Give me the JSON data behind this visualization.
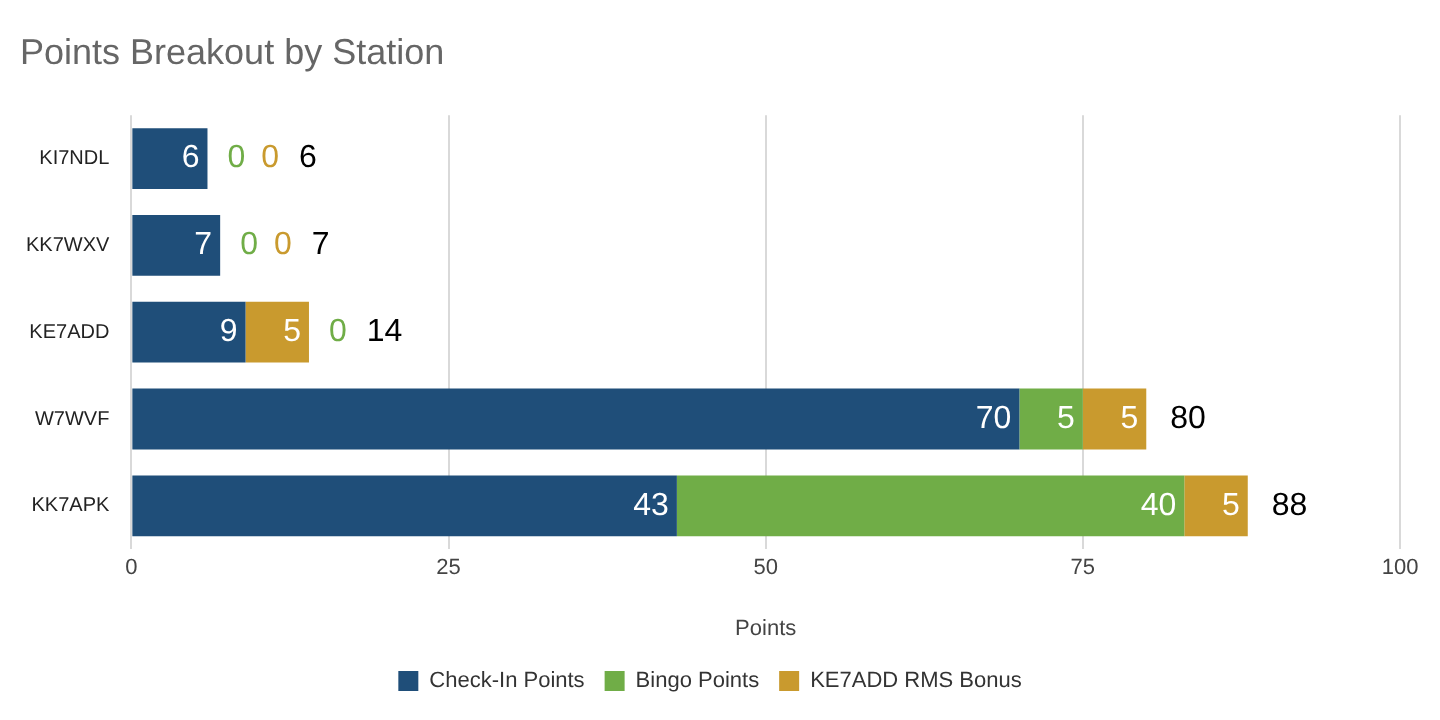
{
  "chart_data": {
    "type": "bar",
    "orientation": "horizontal",
    "stacked": true,
    "title": "Points Breakout by Station",
    "xlabel": "Points",
    "categories": [
      "KI7NDL",
      "KK7WXV",
      "KE7ADD",
      "W7WVF",
      "KK7APK"
    ],
    "series": [
      {
        "name": "Check-In Points",
        "color": "#1f4e79",
        "values": [
          6,
          7,
          9,
          70,
          43
        ]
      },
      {
        "name": "Bingo Points",
        "color": "#70ad47",
        "values": [
          0,
          0,
          0,
          5,
          40
        ]
      },
      {
        "name": "KE7ADD RMS Bonus",
        "color": "#c99a2e",
        "values": [
          0,
          0,
          5,
          5,
          5
        ]
      }
    ],
    "xlim": [
      0,
      100
    ],
    "xticks": [
      0,
      25,
      50,
      75,
      100
    ],
    "grid": "x",
    "legend": "bottom",
    "data_labels": true,
    "totals": [
      "6",
      "7",
      "14",
      "80",
      "88"
    ]
  }
}
